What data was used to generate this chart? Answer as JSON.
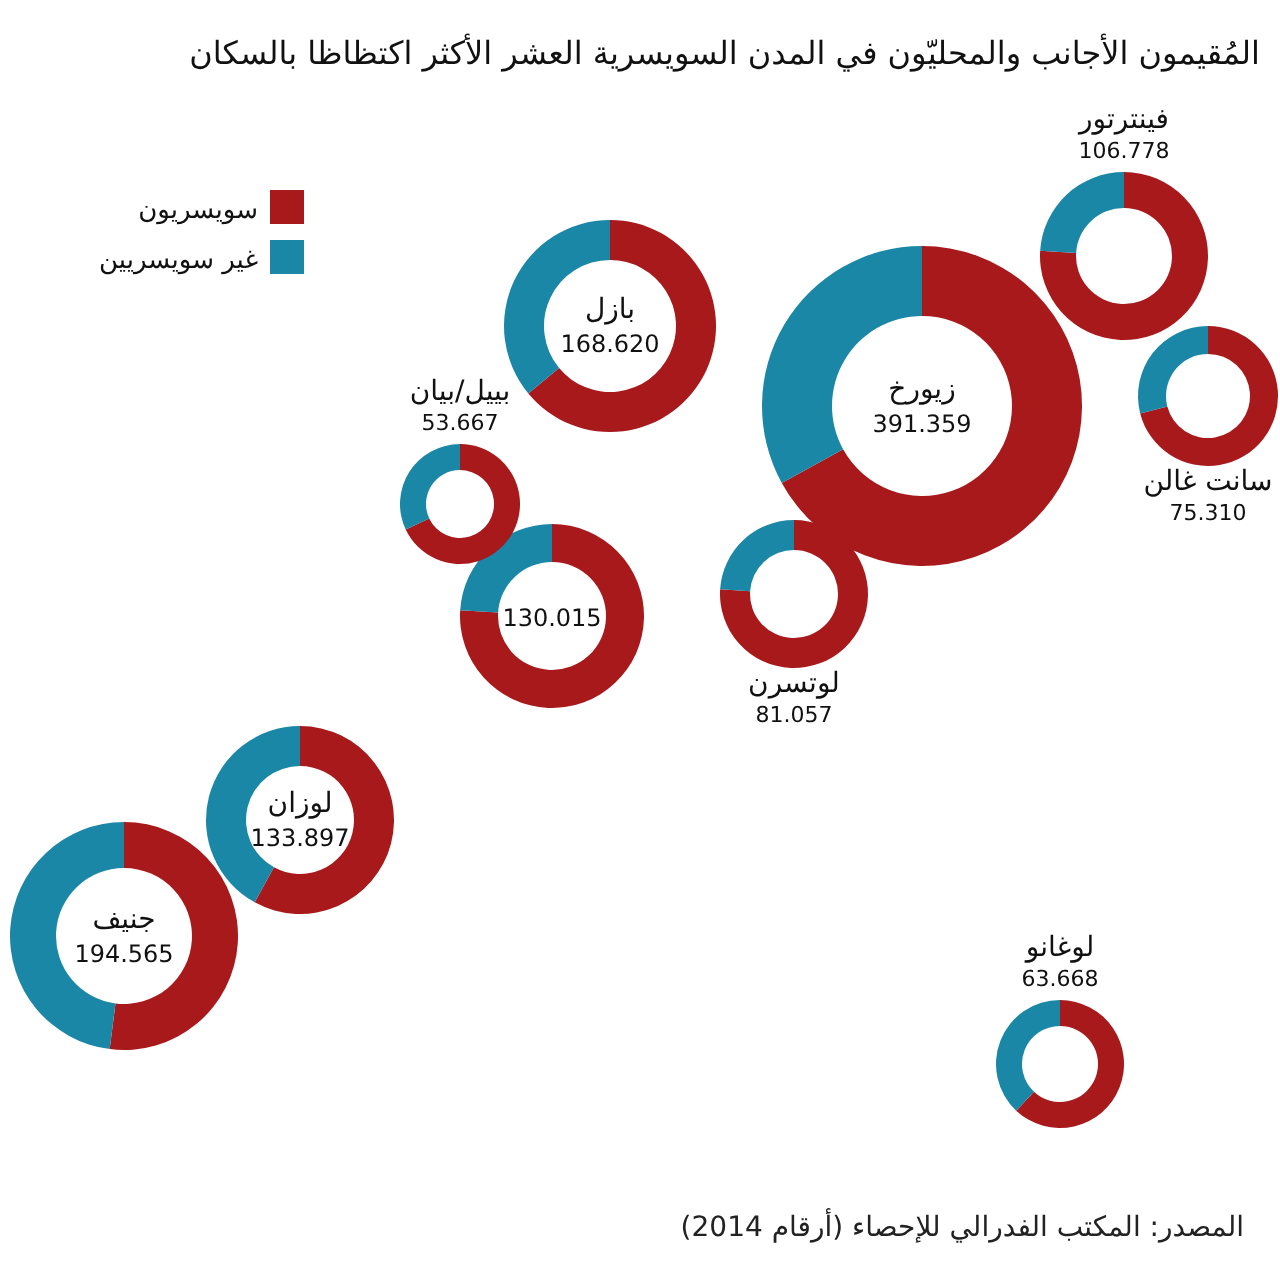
{
  "chart_data": [
    {
      "type": "other",
      "title": "المُقيمون الأجانب والمحليّون في المدن السويسرية العشر الأكثر اكتظاظا بالسكان",
      "annotations": [
        "المصدر: المكتب الفدرالي للإحصاء (أرقام 2014)"
      ]
    },
    {
      "type": "donut",
      "title": "زيورخ",
      "subtitle": "391.359",
      "categories": [
        "سويسريون",
        "غير سويسريين"
      ],
      "values": [
        67,
        33
      ],
      "colors": [
        "#a8191b",
        "#1b87a6"
      ],
      "legend": "top left"
    },
    {
      "type": "donut",
      "title": "جنيف",
      "subtitle": "194.565",
      "values": [
        52,
        48
      ],
      "colors": [
        "#a8191b",
        "#1b87a6"
      ]
    },
    {
      "type": "donut",
      "title": "بازل",
      "subtitle": "168.620",
      "values": [
        64,
        36
      ],
      "colors": [
        "#a8191b",
        "#1b87a6"
      ]
    },
    {
      "type": "donut",
      "title": "لوزان",
      "subtitle": "133.897",
      "values": [
        58,
        42
      ],
      "colors": [
        "#a8191b",
        "#1b87a6"
      ]
    },
    {
      "type": "donut",
      "title": null,
      "subtitle": "130.015",
      "values": [
        76,
        24
      ],
      "colors": [
        "#a8191b",
        "#1b87a6"
      ]
    },
    {
      "type": "donut",
      "title": "فينترتور",
      "subtitle": "106.778",
      "values": [
        76,
        24
      ],
      "colors": [
        "#a8191b",
        "#1b87a6"
      ]
    },
    {
      "type": "donut",
      "title": "لوتسرن",
      "subtitle": "81.057",
      "values": [
        76,
        24
      ],
      "colors": [
        "#a8191b",
        "#1b87a6"
      ]
    },
    {
      "type": "donut",
      "title": "سانت غالن",
      "subtitle": "75.310",
      "values": [
        71,
        29
      ],
      "colors": [
        "#a8191b",
        "#1b87a6"
      ]
    },
    {
      "type": "donut",
      "title": "لوغانو",
      "subtitle": "63.668",
      "values": [
        62,
        38
      ],
      "colors": [
        "#a8191b",
        "#1b87a6"
      ]
    },
    {
      "type": "donut",
      "title": "بييل/بيان",
      "subtitle": "53.667",
      "values": [
        68,
        32
      ],
      "colors": [
        "#a8191b",
        "#1b87a6"
      ]
    }
  ]
}
